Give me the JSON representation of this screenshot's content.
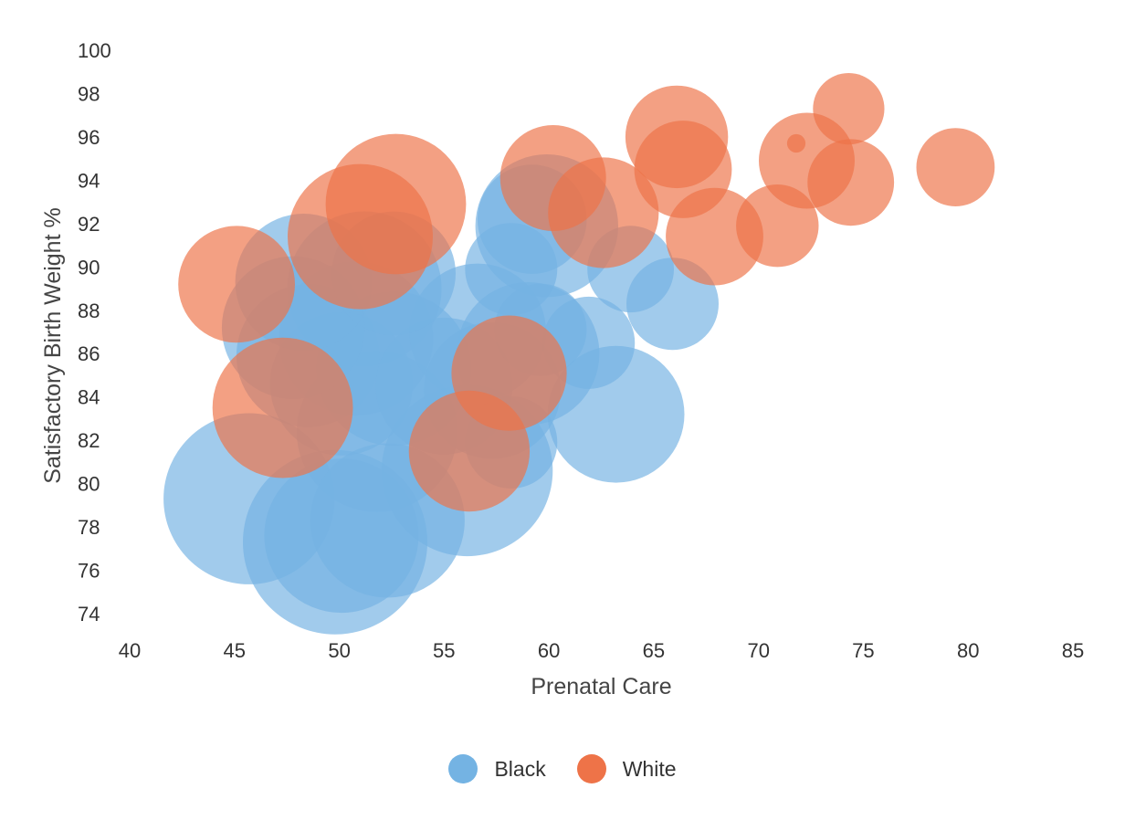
{
  "chart_data": {
    "type": "scatter",
    "xlabel": "Prenatal Care",
    "ylabel": "Satisfactory Birth Weight %",
    "xlim": [
      40,
      85
    ],
    "ylim": [
      74,
      100
    ],
    "x_ticks": [
      40,
      45,
      50,
      55,
      60,
      65,
      70,
      75,
      80,
      85
    ],
    "y_ticks": [
      74,
      76,
      78,
      80,
      82,
      84,
      86,
      88,
      90,
      92,
      94,
      96,
      98,
      100
    ],
    "bubble": true,
    "legend_position": "bottom-center",
    "series": [
      {
        "name": "Black",
        "color": "#74b3e3",
        "points": [
          {
            "x": 45.7,
            "y": 79.3,
            "size": 86
          },
          {
            "x": 49.8,
            "y": 77.3,
            "size": 100
          },
          {
            "x": 50.1,
            "y": 77.6,
            "size": 70
          },
          {
            "x": 52.3,
            "y": 78.3,
            "size": 70
          },
          {
            "x": 56.1,
            "y": 80.6,
            "size": 86
          },
          {
            "x": 48.5,
            "y": 85.9,
            "size": 60
          },
          {
            "x": 48.3,
            "y": 89.3,
            "size": 55
          },
          {
            "x": 50.8,
            "y": 86.7,
            "size": 70
          },
          {
            "x": 51.8,
            "y": 82.4,
            "size": 76
          },
          {
            "x": 52.6,
            "y": 85.3,
            "size": 70
          },
          {
            "x": 51.2,
            "y": 89.0,
            "size": 70
          },
          {
            "x": 52.6,
            "y": 89.7,
            "size": 45
          },
          {
            "x": 50.1,
            "y": 84.6,
            "size": 60
          },
          {
            "x": 47.8,
            "y": 87.2,
            "size": 60
          },
          {
            "x": 55.0,
            "y": 84.5,
            "size": 55
          },
          {
            "x": 56.6,
            "y": 87.0,
            "size": 55
          },
          {
            "x": 57.3,
            "y": 84.3,
            "size": 55
          },
          {
            "x": 59.0,
            "y": 86.0,
            "size": 60
          },
          {
            "x": 59.6,
            "y": 87.1,
            "size": 25
          },
          {
            "x": 58.2,
            "y": 81.9,
            "size": 25
          },
          {
            "x": 58.2,
            "y": 89.9,
            "size": 25
          },
          {
            "x": 59.9,
            "y": 91.9,
            "size": 60
          },
          {
            "x": 59.2,
            "y": 92.2,
            "size": 35
          },
          {
            "x": 61.9,
            "y": 86.5,
            "size": 25
          },
          {
            "x": 63.2,
            "y": 83.2,
            "size": 55
          },
          {
            "x": 63.9,
            "y": 89.9,
            "size": 22
          },
          {
            "x": 65.9,
            "y": 88.3,
            "size": 25
          }
        ]
      },
      {
        "name": "White",
        "color": "#ee7348",
        "points": [
          {
            "x": 45.1,
            "y": 89.2,
            "size": 40
          },
          {
            "x": 47.3,
            "y": 83.5,
            "size": 58
          },
          {
            "x": 51.0,
            "y": 91.4,
            "size": 62
          },
          {
            "x": 52.7,
            "y": 92.9,
            "size": 58
          },
          {
            "x": 56.2,
            "y": 81.5,
            "size": 43
          },
          {
            "x": 58.1,
            "y": 85.1,
            "size": 39
          },
          {
            "x": 60.2,
            "y": 94.1,
            "size": 33
          },
          {
            "x": 62.6,
            "y": 92.5,
            "size": 36
          },
          {
            "x": 66.1,
            "y": 96.0,
            "size": 31
          },
          {
            "x": 66.4,
            "y": 94.5,
            "size": 28
          },
          {
            "x": 67.9,
            "y": 91.4,
            "size": 28
          },
          {
            "x": 70.9,
            "y": 91.9,
            "size": 20
          },
          {
            "x": 71.8,
            "y": 95.7,
            "size": 1
          },
          {
            "x": 72.3,
            "y": 94.9,
            "size": 27
          },
          {
            "x": 74.3,
            "y": 97.3,
            "size": 15
          },
          {
            "x": 74.4,
            "y": 93.9,
            "size": 22
          },
          {
            "x": 79.4,
            "y": 94.6,
            "size": 18
          }
        ]
      }
    ]
  }
}
